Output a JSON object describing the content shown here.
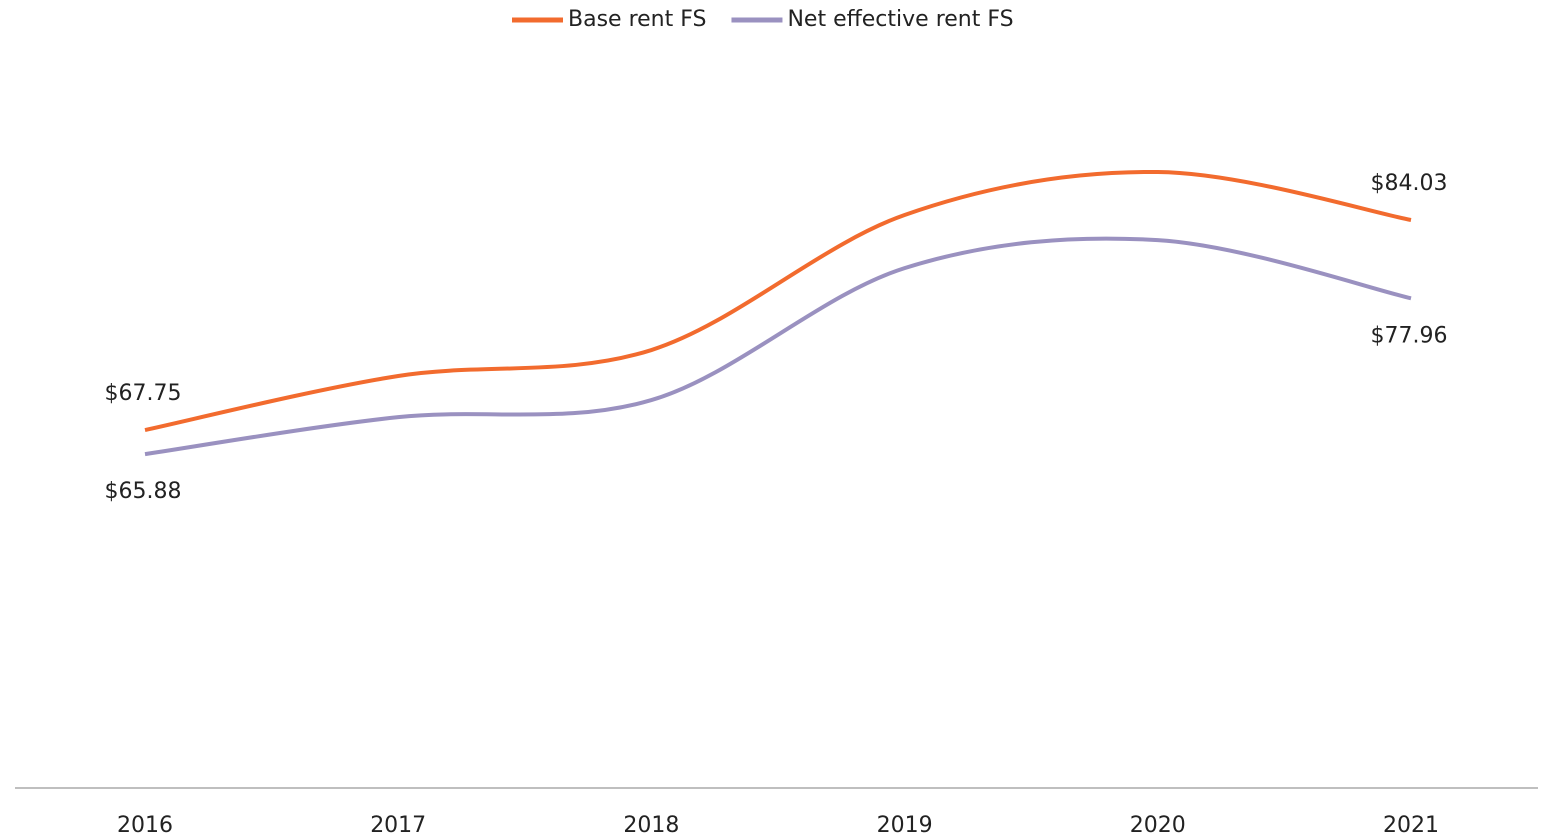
{
  "chart_data": {
    "type": "line",
    "categories": [
      "2016",
      "2017",
      "2018",
      "2019",
      "2020",
      "2021"
    ],
    "series": [
      {
        "name": "Base rent FS",
        "color": "#f26b2e",
        "values": [
          67.75,
          71.94,
          73.95,
          84.42,
          87.75,
          84.03
        ],
        "value_labels": [
          "$67.75",
          null,
          null,
          null,
          null,
          "$84.03"
        ]
      },
      {
        "name": "Net effective rent FS",
        "color": "#9a91c0",
        "values": [
          65.88,
          68.75,
          70.07,
          80.3,
          82.47,
          77.96
        ],
        "value_labels": [
          "$65.88",
          null,
          null,
          null,
          null,
          "$77.96"
        ]
      }
    ],
    "ylim": [
      40,
      100
    ],
    "legend": "top"
  }
}
